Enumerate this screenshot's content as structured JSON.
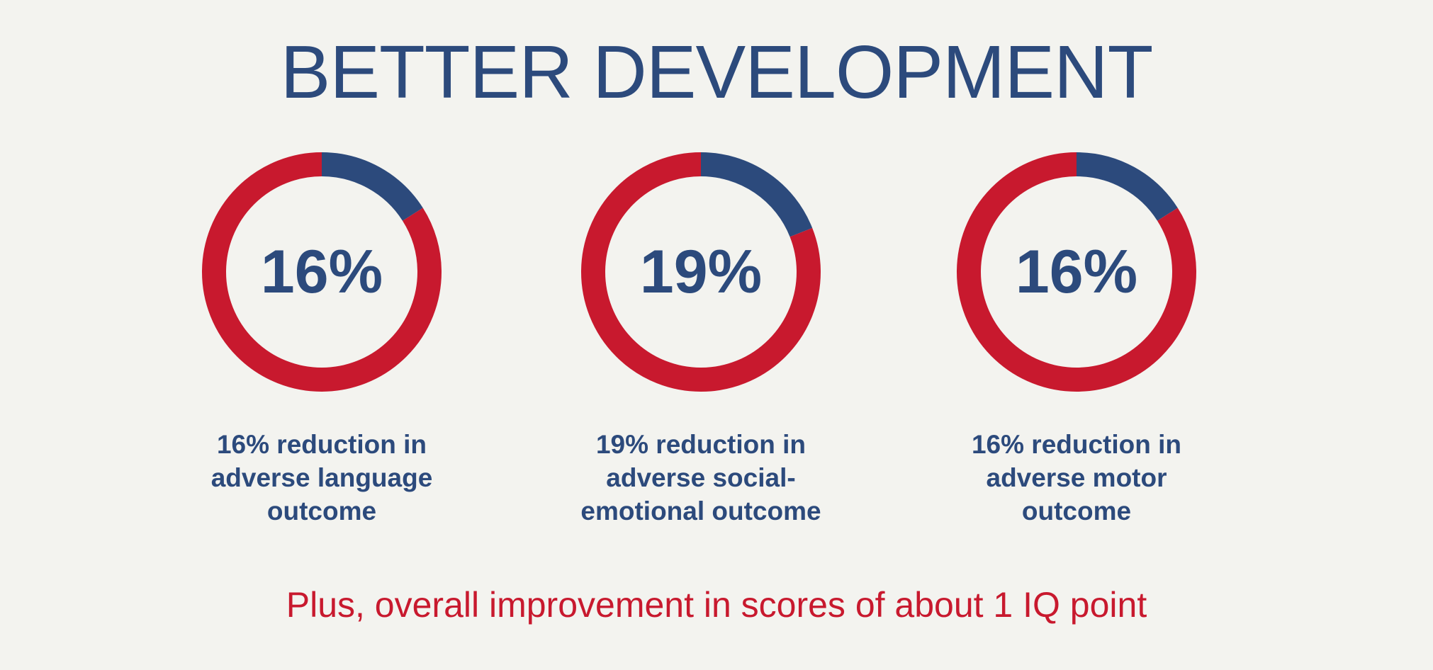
{
  "title": "BETTER DEVELOPMENT",
  "colors": {
    "highlight": "#2c4a7c",
    "remainder": "#c8192e",
    "background": "#f3f3ef"
  },
  "chart_data": [
    {
      "type": "pie",
      "style": "donut",
      "center_label": "16%",
      "values": [
        16,
        84
      ],
      "caption_lines": [
        "16% reduction in",
        "adverse language",
        "outcome"
      ]
    },
    {
      "type": "pie",
      "style": "donut",
      "center_label": "19%",
      "values": [
        19,
        81
      ],
      "caption_lines": [
        "19% reduction in",
        "adverse social-",
        "emotional outcome"
      ]
    },
    {
      "type": "pie",
      "style": "donut",
      "center_label": "16%",
      "values": [
        16,
        84
      ],
      "caption_lines": [
        "16% reduction in",
        "adverse motor",
        "outcome"
      ]
    }
  ],
  "footer": "Plus, overall improvement in scores of about 1 IQ point"
}
